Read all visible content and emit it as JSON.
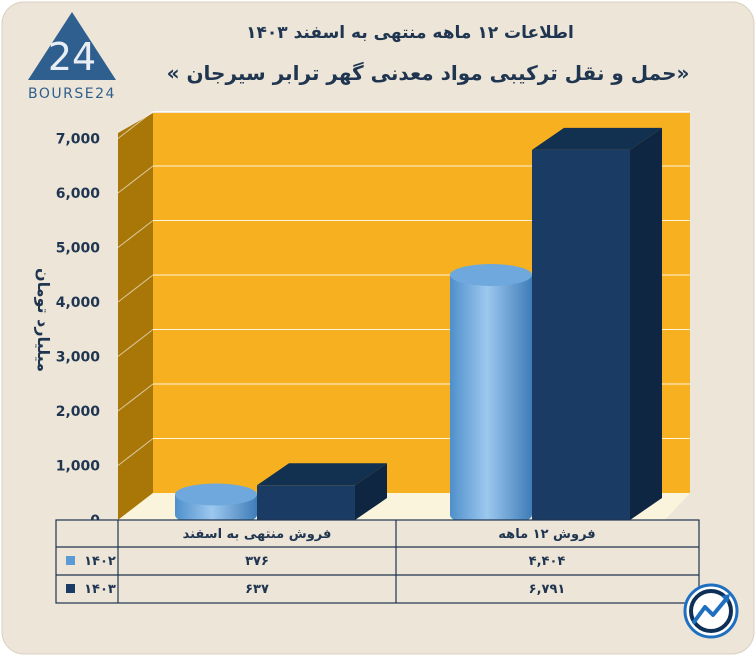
{
  "header": {
    "title": "اطلاعات ۱۲ ماهه منتهی به اسفند ۱۴۰۳",
    "subtitle": "«حمل و نقل ترکیبی مواد معدنی گهر ترابر سیرجان »"
  },
  "logo": {
    "text": "BOURSE24",
    "mark": "24"
  },
  "colors": {
    "background": "#ece5d8",
    "plot": "#f7b01f",
    "wall": "#a87708",
    "floor": "#fbf4dc",
    "series_1402": "#5b9bd5",
    "series_1403": "#1a3c64",
    "text": "#1f3550"
  },
  "chart_data": {
    "type": "bar",
    "ylabel": "میلیارد تومان",
    "ylim": [
      0,
      7000
    ],
    "yticks": [
      0,
      1000,
      2000,
      3000,
      4000,
      5000,
      6000,
      7000
    ],
    "ytick_labels": [
      "0",
      "1,000",
      "2,000",
      "3,000",
      "4,000",
      "5,000",
      "6,000",
      "7,000"
    ],
    "grid": true,
    "categories": [
      "فروش منتهی به اسفند",
      "فروش ۱۲ ماهه"
    ],
    "series": [
      {
        "name": "۱۴۰۲",
        "values": [
          376,
          4404
        ],
        "labels": [
          "۳۷۶",
          "۴,۴۰۴"
        ],
        "shape": "cylinder"
      },
      {
        "name": "۱۴۰۳",
        "values": [
          637,
          6791
        ],
        "labels": [
          "۶۳۷",
          "۶,۷۹۱"
        ],
        "shape": "box"
      }
    ]
  },
  "icons": {
    "bottom_right": "chart-trend-logo-icon"
  }
}
